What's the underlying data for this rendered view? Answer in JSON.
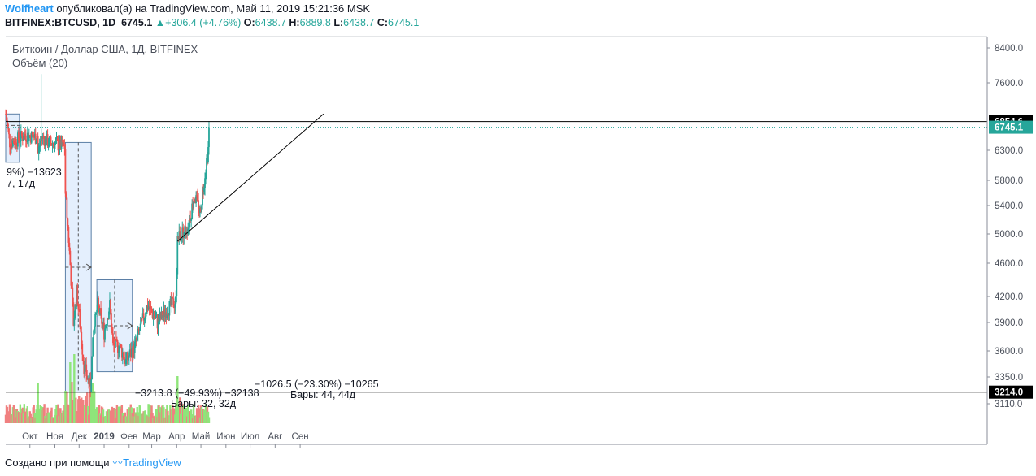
{
  "header": {
    "author": "Wolfheart",
    "published_text": "опубликовал(а) на TradingView.com, Май 11, 2019 15:21:36 MSK",
    "symbol": "BITFINEX:BTCUSD, 1D",
    "last": "6745.1",
    "change": "+306.4 (+4.76%)",
    "o_label": "O:",
    "o": "6438.7",
    "h_label": "H:",
    "h": "6889.8",
    "l_label": "L:",
    "l": "6438.7",
    "c_label": "C:",
    "c": "6745.1"
  },
  "legend": {
    "title": "Биткоин / Доллар США, 1Д, BITFINEX",
    "volume": "Объём (20)"
  },
  "footer": {
    "created_with": "Создано при помощи",
    "brand": "TradingView"
  },
  "colors": {
    "up": "#26a69a",
    "down": "#ef5350",
    "vol_up": "#8fe57a",
    "vol_down": "#f08080",
    "range_box": "#dbeafc",
    "last_badge": "#26a69a"
  },
  "chart_data": {
    "type": "candlestick",
    "y_ticks": [
      "8400.0",
      "7600.0",
      "6854.6",
      "6745.1",
      "6300.0",
      "5800.0",
      "5400.0",
      "5000.0",
      "4600.0",
      "4200.0",
      "3900.0",
      "3600.0",
      "3350.0",
      "3214.0",
      "3110.0"
    ],
    "y_tick_values": [
      8400,
      7600,
      6854.6,
      6745.1,
      6300,
      5800,
      5400,
      5000,
      4600,
      4200,
      3900,
      3600,
      3350,
      3214,
      3110
    ],
    "x_ticks": [
      "Окт",
      "Ноя",
      "Дек",
      "2019",
      "Фев",
      "Мар",
      "Апр",
      "Май",
      "Июн",
      "Июл",
      "Авг",
      "Сен"
    ],
    "horizontal_levels": [
      6854.6,
      3214.0
    ],
    "last_price": 6745.1,
    "trendline": {
      "from": [
        "2019-04-02",
        4900
      ],
      "to": [
        "2019-09-30",
        7000
      ]
    },
    "annotations": {
      "left_partial_1": "9%) −13623",
      "left_partial_2": "7, 17д",
      "range_nov": "−3213.8 (−49.93%) −32138",
      "range_nov_bars": "Бары: 32, 32д",
      "range_jan": "−1026.5 (−23.30%) −10265",
      "range_jan_bars": "Бары: 44, 44д"
    },
    "anchors": [
      [
        "2018-09-01",
        7000
      ],
      [
        "2018-09-06",
        6450
      ],
      [
        "2018-09-15",
        6500
      ],
      [
        "2018-09-25",
        6600
      ],
      [
        "2018-10-08",
        6550
      ],
      [
        "2018-10-10",
        6600
      ],
      [
        "2018-10-11",
        6250
      ],
      [
        "2018-10-15",
        6550
      ],
      [
        "2018-10-25",
        6450
      ],
      [
        "2018-11-05",
        6400
      ],
      [
        "2018-11-13",
        6350
      ],
      [
        "2018-11-14",
        5600
      ],
      [
        "2018-11-19",
        4750
      ],
      [
        "2018-11-24",
        3900
      ],
      [
        "2018-11-28",
        4250
      ],
      [
        "2018-12-07",
        3450
      ],
      [
        "2018-12-15",
        3250
      ],
      [
        "2018-12-19",
        3800
      ],
      [
        "2018-12-24",
        4100
      ],
      [
        "2019-01-01",
        3800
      ],
      [
        "2019-01-08",
        4100
      ],
      [
        "2019-01-12",
        3650
      ],
      [
        "2019-01-20",
        3650
      ],
      [
        "2019-01-28",
        3500
      ],
      [
        "2019-02-08",
        3650
      ],
      [
        "2019-02-24",
        4100
      ],
      [
        "2019-03-08",
        3900
      ],
      [
        "2019-03-20",
        4050
      ],
      [
        "2019-03-31",
        4150
      ],
      [
        "2019-04-02",
        4950
      ],
      [
        "2019-04-15",
        5100
      ],
      [
        "2019-04-23",
        5550
      ],
      [
        "2019-04-30",
        5300
      ],
      [
        "2019-05-04",
        5700
      ],
      [
        "2019-05-10",
        6350
      ],
      [
        "2019-05-11",
        6745
      ]
    ]
  }
}
